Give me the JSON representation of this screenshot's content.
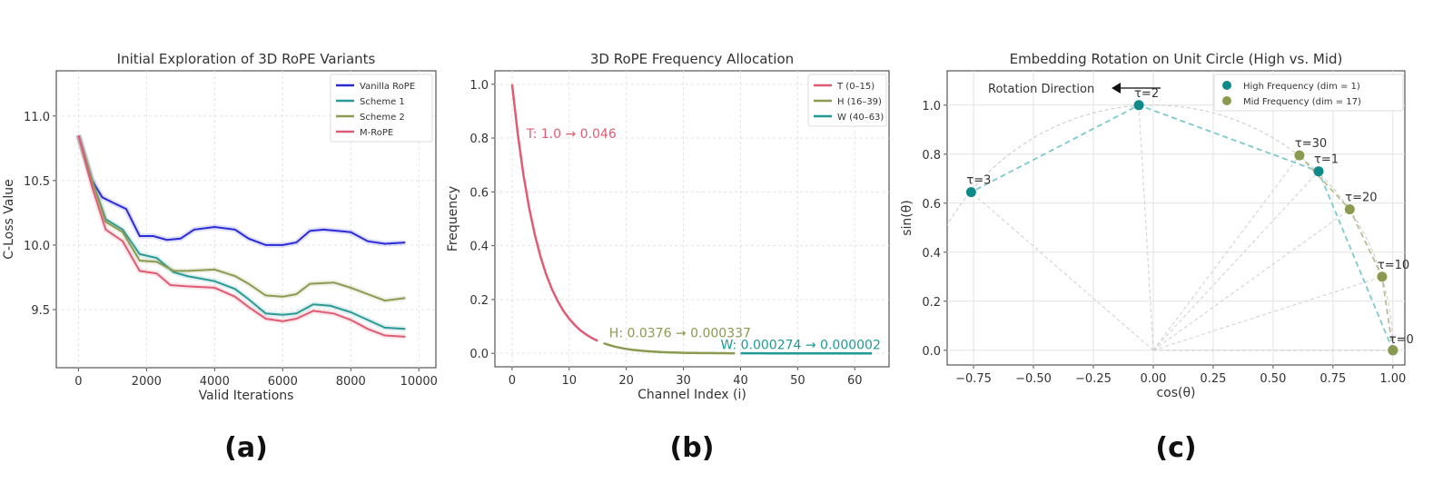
{
  "chart_data": [
    {
      "type": "line",
      "panel_label": "(a)",
      "title": "Initial Exploration of 3D RoPE Variants",
      "xlabel": "Valid Iterations",
      "ylabel": "C-Loss Value",
      "xlim": [
        -650,
        10500
      ],
      "ylim": [
        9.05,
        11.35
      ],
      "xticks": [
        0,
        2000,
        4000,
        6000,
        8000,
        10000
      ],
      "yticks": [
        9.5,
        10.0,
        10.5,
        11.0
      ],
      "grid": true,
      "legend_position": "top-right",
      "series": [
        {
          "name": "Vanilla RoPE",
          "color": "#2b2bd6",
          "points": [
            [
              0,
              10.85
            ],
            [
              400,
              10.5
            ],
            [
              700,
              10.37
            ],
            [
              1000,
              10.33
            ],
            [
              1400,
              10.28
            ],
            [
              1800,
              10.07
            ],
            [
              2200,
              10.07
            ],
            [
              2600,
              10.04
            ],
            [
              3000,
              10.05
            ],
            [
              3400,
              10.12
            ],
            [
              4000,
              10.14
            ],
            [
              4600,
              10.12
            ],
            [
              5000,
              10.05
            ],
            [
              5500,
              10.0
            ],
            [
              6000,
              10.0
            ],
            [
              6400,
              10.02
            ],
            [
              6800,
              10.11
            ],
            [
              7200,
              10.12
            ],
            [
              7600,
              10.11
            ],
            [
              8000,
              10.1
            ],
            [
              8500,
              10.03
            ],
            [
              9000,
              10.01
            ],
            [
              9600,
              10.02
            ]
          ]
        },
        {
          "name": "Scheme 1",
          "color": "#2a9a96",
          "points": [
            [
              0,
              10.85
            ],
            [
              400,
              10.5
            ],
            [
              800,
              10.2
            ],
            [
              1300,
              10.12
            ],
            [
              1800,
              9.93
            ],
            [
              2300,
              9.9
            ],
            [
              2800,
              9.79
            ],
            [
              3200,
              9.76
            ],
            [
              3600,
              9.74
            ],
            [
              4000,
              9.72
            ],
            [
              4600,
              9.66
            ],
            [
              5000,
              9.58
            ],
            [
              5500,
              9.47
            ],
            [
              6000,
              9.46
            ],
            [
              6400,
              9.47
            ],
            [
              6900,
              9.54
            ],
            [
              7400,
              9.53
            ],
            [
              8000,
              9.48
            ],
            [
              8500,
              9.42
            ],
            [
              9000,
              9.36
            ],
            [
              9600,
              9.35
            ]
          ]
        },
        {
          "name": "Scheme 2",
          "color": "#8a9a50",
          "points": [
            [
              0,
              10.85
            ],
            [
              400,
              10.5
            ],
            [
              800,
              10.18
            ],
            [
              1300,
              10.1
            ],
            [
              1800,
              9.88
            ],
            [
              2300,
              9.87
            ],
            [
              2800,
              9.8
            ],
            [
              3200,
              9.8
            ],
            [
              4000,
              9.81
            ],
            [
              4600,
              9.76
            ],
            [
              5000,
              9.7
            ],
            [
              5500,
              9.61
            ],
            [
              6000,
              9.6
            ],
            [
              6400,
              9.62
            ],
            [
              6800,
              9.7
            ],
            [
              7500,
              9.71
            ],
            [
              8000,
              9.67
            ],
            [
              8500,
              9.62
            ],
            [
              9000,
              9.57
            ],
            [
              9600,
              9.59
            ]
          ]
        },
        {
          "name": "M-RoPE",
          "color": "#e05c74",
          "points": [
            [
              0,
              10.85
            ],
            [
              400,
              10.45
            ],
            [
              800,
              10.12
            ],
            [
              1300,
              10.03
            ],
            [
              1800,
              9.8
            ],
            [
              2300,
              9.78
            ],
            [
              2700,
              9.69
            ],
            [
              3200,
              9.68
            ],
            [
              4000,
              9.67
            ],
            [
              4600,
              9.6
            ],
            [
              5000,
              9.52
            ],
            [
              5500,
              9.43
            ],
            [
              6000,
              9.41
            ],
            [
              6400,
              9.43
            ],
            [
              6900,
              9.49
            ],
            [
              7500,
              9.47
            ],
            [
              8000,
              9.42
            ],
            [
              8500,
              9.35
            ],
            [
              9000,
              9.3
            ],
            [
              9600,
              9.29
            ]
          ]
        }
      ]
    },
    {
      "type": "line",
      "panel_label": "(b)",
      "title": "3D RoPE Frequency Allocation",
      "xlabel": "Channel Index (i)",
      "ylabel": "Frequency",
      "xlim": [
        -3,
        66
      ],
      "ylim": [
        -0.05,
        1.05
      ],
      "xticks": [
        0,
        10,
        20,
        30,
        40,
        50,
        60
      ],
      "yticks": [
        0.0,
        0.2,
        0.4,
        0.6,
        0.8,
        1.0
      ],
      "grid": true,
      "legend_position": "top-right",
      "series": [
        {
          "name": "T (0–15)",
          "color": "#e05c74",
          "x_start": 0,
          "annotation": "T: 1.0 → 0.046",
          "annotation_at": [
            2.5,
            0.8
          ],
          "values": [
            1.0,
            0.8144,
            0.6633,
            0.5402,
            0.4399,
            0.3583,
            0.2918,
            0.2376,
            0.1935,
            0.1576,
            0.1284,
            0.1045,
            0.0851,
            0.0693,
            0.0565,
            0.046
          ]
        },
        {
          "name": "H (16–39)",
          "color": "#8a9a50",
          "x_start": 16,
          "annotation": "H: 0.0376 → 0.000337",
          "annotation_at": [
            17,
            0.06
          ],
          "values": [
            0.0376,
            0.0306,
            0.0249,
            0.0203,
            0.0165,
            0.0135,
            0.011,
            0.0089,
            0.0073,
            0.0059,
            0.0048,
            0.0039,
            0.0032,
            0.0026,
            0.0021,
            0.0017,
            0.0014,
            0.0011,
            0.0009,
            0.0008,
            0.0006,
            0.0005,
            0.0004,
            0.000337
          ]
        },
        {
          "name": "W (40–63)",
          "color": "#1f9a96",
          "x_start": 40,
          "annotation": "W: 0.000274 → 0.000002",
          "annotation_at": [
            36.5,
            0.015
          ],
          "values": [
            0.000274,
            0.000221,
            0.000178,
            0.000144,
            0.000116,
            9.4e-05,
            7.6e-05,
            6.1e-05,
            4.9e-05,
            4e-05,
            3.2e-05,
            2.6e-05,
            2.1e-05,
            1.7e-05,
            1.4e-05,
            1.1e-05,
            9e-06,
            7e-06,
            6e-06,
            5e-06,
            4e-06,
            3e-06,
            3e-06,
            2e-06
          ]
        }
      ]
    },
    {
      "type": "scatter",
      "panel_label": "(c)",
      "title": "Embedding Rotation on Unit Circle (High vs. Mid)",
      "xlabel": "cos(θ)",
      "ylabel": "sin(θ)",
      "xlim": [
        -0.86,
        1.05
      ],
      "ylim": [
        -0.06,
        1.14
      ],
      "xticks": [
        -0.75,
        -0.5,
        -0.25,
        0.0,
        0.25,
        0.5,
        0.75,
        1.0
      ],
      "xtick_labels": [
        "−0.75",
        "−0.50",
        "−0.25",
        "0.00",
        "0.25",
        "0.50",
        "0.75",
        "1.00"
      ],
      "yticks": [
        0.0,
        0.2,
        0.4,
        0.6,
        0.8,
        1.0
      ],
      "grid": true,
      "legend_position": "top-right",
      "annotation": "Rotation Direction",
      "series": [
        {
          "name": "High Frequency (dim = 1)",
          "color": "#0f8a8a",
          "line_color": "#7cc9cc",
          "points": [
            {
              "label": "τ=0",
              "x": 1.0,
              "y": 0.0
            },
            {
              "label": "τ=1",
              "x": 0.69,
              "y": 0.73
            },
            {
              "label": "τ=2",
              "x": -0.06,
              "y": 1.0
            },
            {
              "label": "τ=3",
              "x": -0.76,
              "y": 0.645
            }
          ]
        },
        {
          "name": "Mid Frequency (dim = 17)",
          "color": "#8a9a4e",
          "line_color": "#b8bf94",
          "points": [
            {
              "label": "τ=0",
              "x": 1.0,
              "y": 0.0
            },
            {
              "label": "τ=10",
              "x": 0.955,
              "y": 0.3
            },
            {
              "label": "τ=20",
              "x": 0.82,
              "y": 0.575
            },
            {
              "label": "τ=30",
              "x": 0.61,
              "y": 0.795
            }
          ]
        }
      ]
    }
  ]
}
